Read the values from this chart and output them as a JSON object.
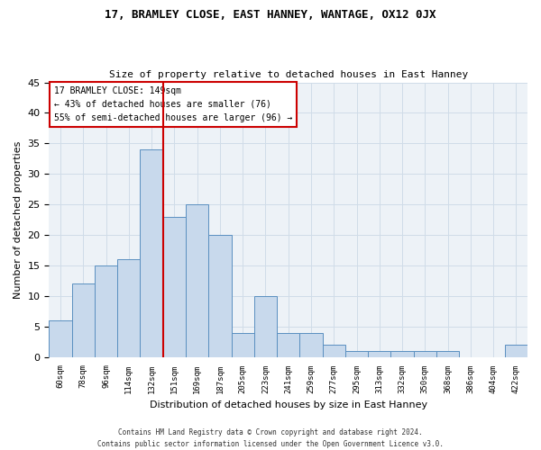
{
  "title1": "17, BRAMLEY CLOSE, EAST HANNEY, WANTAGE, OX12 0JX",
  "title2": "Size of property relative to detached houses in East Hanney",
  "xlabel": "Distribution of detached houses by size in East Hanney",
  "ylabel": "Number of detached properties",
  "categories": [
    "60sqm",
    "78sqm",
    "96sqm",
    "114sqm",
    "132sqm",
    "151sqm",
    "169sqm",
    "187sqm",
    "205sqm",
    "223sqm",
    "241sqm",
    "259sqm",
    "277sqm",
    "295sqm",
    "313sqm",
    "332sqm",
    "350sqm",
    "368sqm",
    "386sqm",
    "404sqm",
    "422sqm"
  ],
  "values": [
    6,
    12,
    15,
    16,
    34,
    23,
    25,
    20,
    4,
    10,
    4,
    4,
    2,
    1,
    1,
    1,
    1,
    1,
    0,
    0,
    2
  ],
  "bar_color": "#c8d9ec",
  "bar_edge_color": "#5a8fc0",
  "property_line_index": 5,
  "property_label": "17 BRAMLEY CLOSE: 149sqm",
  "annotation_line1": "← 43% of detached houses are smaller (76)",
  "annotation_line2": "55% of semi-detached houses are larger (96) →",
  "annotation_box_color": "#ffffff",
  "annotation_box_edge": "#cc0000",
  "vline_color": "#cc0000",
  "grid_color": "#d0dce8",
  "bg_color": "#edf2f7",
  "footer1": "Contains HM Land Registry data © Crown copyright and database right 2024.",
  "footer2": "Contains public sector information licensed under the Open Government Licence v3.0.",
  "ylim": [
    0,
    45
  ],
  "yticks": [
    0,
    5,
    10,
    15,
    20,
    25,
    30,
    35,
    40,
    45
  ]
}
